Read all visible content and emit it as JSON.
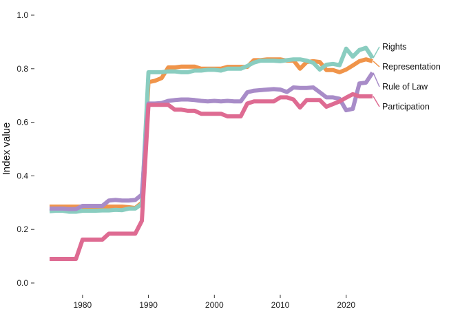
{
  "chart_data": {
    "type": "line",
    "title": "",
    "xlabel": "",
    "ylabel": "Index value",
    "xlim": [
      1975,
      2024
    ],
    "ylim": [
      0,
      1
    ],
    "x_ticks": [
      1980,
      1990,
      2000,
      2010,
      2020
    ],
    "y_ticks": [
      0.0,
      0.2,
      0.4,
      0.6,
      0.8,
      1.0
    ],
    "y_tick_labels": [
      "0.0",
      "0.2",
      "0.4",
      "0.6",
      "0.8",
      "1.0"
    ],
    "grid": false,
    "legend": "direct labels at right end of lines",
    "x": [
      1975,
      1976,
      1977,
      1978,
      1979,
      1980,
      1981,
      1982,
      1983,
      1984,
      1985,
      1986,
      1987,
      1988,
      1989,
      1990,
      1991,
      1992,
      1993,
      1994,
      1995,
      1996,
      1997,
      1998,
      1999,
      2000,
      2001,
      2002,
      2003,
      2004,
      2005,
      2006,
      2007,
      2008,
      2009,
      2010,
      2011,
      2012,
      2013,
      2014,
      2015,
      2016,
      2017,
      2018,
      2019,
      2020,
      2021,
      2022,
      2023,
      2024
    ],
    "series": [
      {
        "name": "Representation",
        "color": "#F0944A",
        "values": [
          0.285,
          0.285,
          0.285,
          0.285,
          0.285,
          0.285,
          0.285,
          0.285,
          0.285,
          0.285,
          0.285,
          0.285,
          0.283,
          0.28,
          0.3,
          0.75,
          0.755,
          0.765,
          0.805,
          0.805,
          0.808,
          0.808,
          0.808,
          0.8,
          0.8,
          0.8,
          0.8,
          0.807,
          0.807,
          0.807,
          0.807,
          0.832,
          0.832,
          0.835,
          0.835,
          0.835,
          0.83,
          0.832,
          0.8,
          0.825,
          0.828,
          0.825,
          0.795,
          0.795,
          0.787,
          0.797,
          0.812,
          0.828,
          0.835,
          0.828
        ]
      },
      {
        "name": "Rights",
        "color": "#8ACDC0",
        "values": [
          0.268,
          0.27,
          0.27,
          0.266,
          0.266,
          0.27,
          0.27,
          0.27,
          0.271,
          0.271,
          0.273,
          0.272,
          0.278,
          0.278,
          0.295,
          0.787,
          0.787,
          0.787,
          0.79,
          0.79,
          0.787,
          0.787,
          0.793,
          0.793,
          0.796,
          0.796,
          0.793,
          0.8,
          0.8,
          0.8,
          0.81,
          0.823,
          0.83,
          0.83,
          0.83,
          0.828,
          0.832,
          0.835,
          0.835,
          0.83,
          0.822,
          0.797,
          0.815,
          0.818,
          0.813,
          0.875,
          0.845,
          0.87,
          0.878,
          0.84
        ]
      },
      {
        "name": "Rule of Law",
        "color": "#A88CC8",
        "values": [
          0.278,
          0.278,
          0.278,
          0.276,
          0.276,
          0.288,
          0.288,
          0.288,
          0.288,
          0.308,
          0.31,
          0.308,
          0.308,
          0.31,
          0.33,
          0.67,
          0.67,
          0.672,
          0.68,
          0.683,
          0.685,
          0.685,
          0.683,
          0.68,
          0.678,
          0.68,
          0.678,
          0.68,
          0.678,
          0.678,
          0.712,
          0.718,
          0.72,
          0.722,
          0.724,
          0.722,
          0.713,
          0.73,
          0.728,
          0.728,
          0.73,
          0.712,
          0.693,
          0.693,
          0.688,
          0.645,
          0.65,
          0.745,
          0.748,
          0.785
        ]
      },
      {
        "name": "Participation",
        "color": "#DE6B92",
        "values": [
          0.09,
          0.09,
          0.09,
          0.09,
          0.09,
          0.162,
          0.162,
          0.162,
          0.162,
          0.184,
          0.184,
          0.184,
          0.184,
          0.184,
          0.232,
          0.665,
          0.665,
          0.665,
          0.665,
          0.647,
          0.647,
          0.643,
          0.643,
          0.632,
          0.632,
          0.632,
          0.632,
          0.622,
          0.622,
          0.622,
          0.67,
          0.678,
          0.678,
          0.678,
          0.678,
          0.693,
          0.693,
          0.685,
          0.655,
          0.683,
          0.683,
          0.683,
          0.658,
          0.668,
          0.678,
          0.692,
          0.705,
          0.697,
          0.697,
          0.697
        ]
      }
    ]
  }
}
